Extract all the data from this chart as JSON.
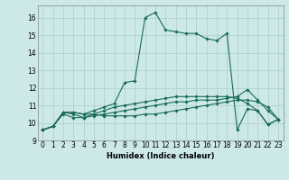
{
  "title": "",
  "xlabel": "Humidex (Indice chaleur)",
  "ylabel": "",
  "bg_color": "#cce8e8",
  "grid_color": "#aacece",
  "line_color": "#1a6b5a",
  "xlim": [
    -0.5,
    23.5
  ],
  "ylim": [
    9,
    16.7
  ],
  "xticks": [
    0,
    1,
    2,
    3,
    4,
    5,
    6,
    7,
    8,
    9,
    10,
    11,
    12,
    13,
    14,
    15,
    16,
    17,
    18,
    19,
    20,
    21,
    22,
    23
  ],
  "yticks": [
    9,
    10,
    11,
    12,
    13,
    14,
    15,
    16
  ],
  "series": [
    [
      9.6,
      9.8,
      10.6,
      10.6,
      10.5,
      10.7,
      10.9,
      11.1,
      12.3,
      12.4,
      16.0,
      16.3,
      15.3,
      15.2,
      15.1,
      15.1,
      14.8,
      14.7,
      15.1,
      9.6,
      10.8,
      10.7,
      9.9,
      10.2
    ],
    [
      9.6,
      9.8,
      10.6,
      10.6,
      10.5,
      10.5,
      10.4,
      10.4,
      10.4,
      10.4,
      10.5,
      10.5,
      10.6,
      10.7,
      10.8,
      10.9,
      11.0,
      11.1,
      11.2,
      11.3,
      11.3,
      11.2,
      10.9,
      10.2
    ],
    [
      9.6,
      9.8,
      10.6,
      10.5,
      10.3,
      10.4,
      10.5,
      10.6,
      10.7,
      10.8,
      10.9,
      11.0,
      11.1,
      11.2,
      11.2,
      11.3,
      11.3,
      11.3,
      11.4,
      11.5,
      11.9,
      11.3,
      10.7,
      10.2
    ],
    [
      9.6,
      9.8,
      10.5,
      10.3,
      10.3,
      10.5,
      10.7,
      10.9,
      11.0,
      11.1,
      11.2,
      11.3,
      11.4,
      11.5,
      11.5,
      11.5,
      11.5,
      11.5,
      11.5,
      11.4,
      11.1,
      10.7,
      9.9,
      10.2
    ]
  ],
  "tick_fontsize": 5.5,
  "xlabel_fontsize": 6.0,
  "marker": "D",
  "markersize": 1.8,
  "linewidth": 0.8
}
